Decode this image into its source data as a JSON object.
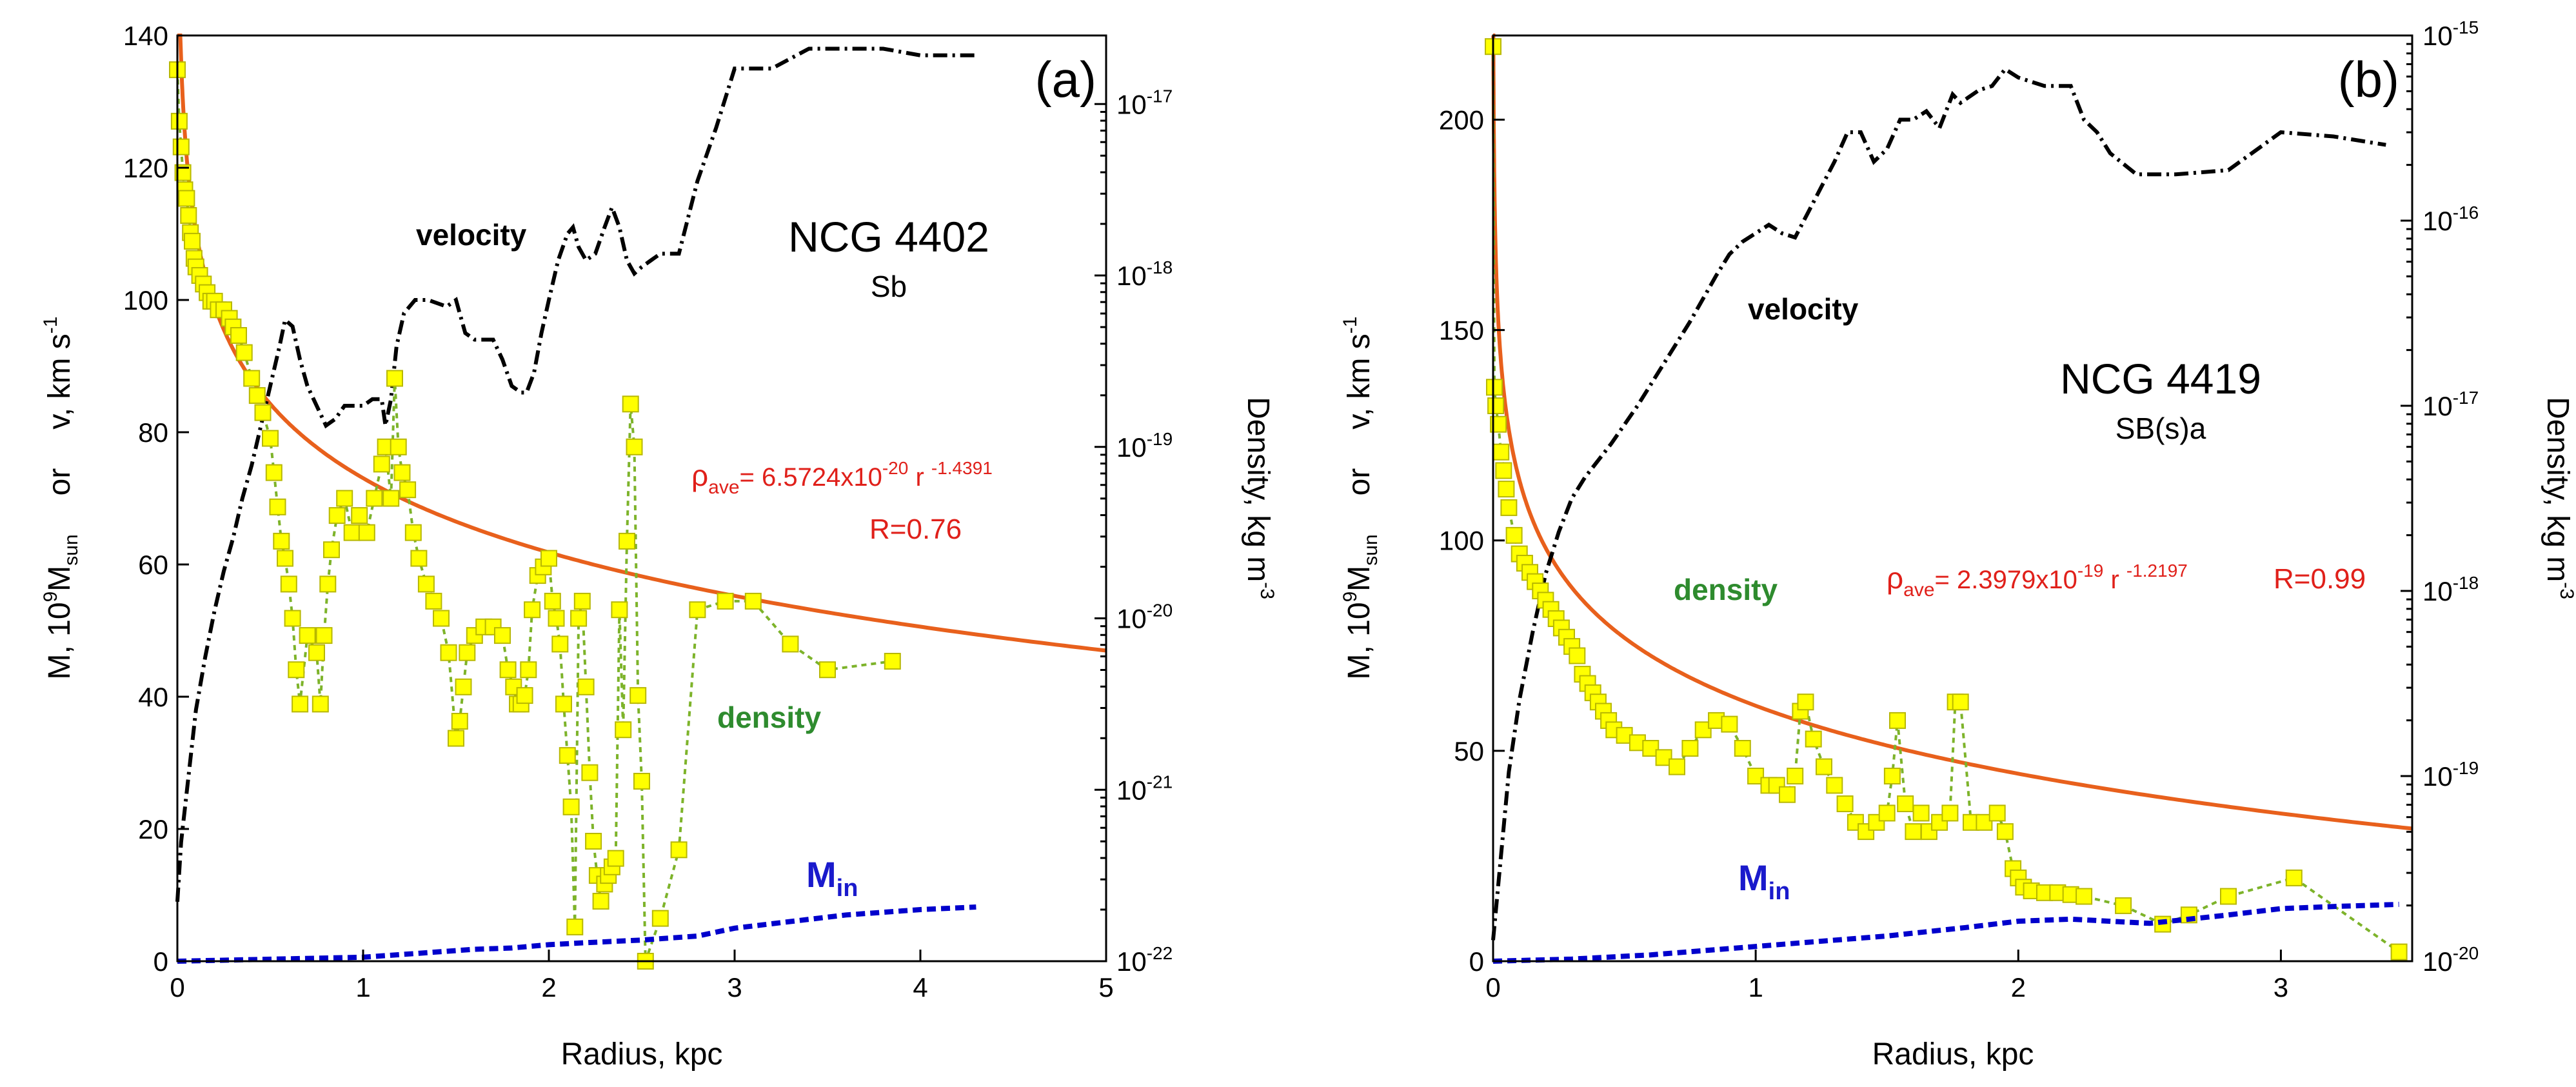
{
  "chart_data": [
    {
      "type": "line",
      "panel_label": "(a)",
      "galaxy": "NCG 4402",
      "morph": "Sb",
      "xlabel": "Radius, kpc",
      "ylabel": "M, 10^9M_sun or v, km s^-1",
      "ylabel_parts": {
        "m": "M, 10",
        "nine": "9",
        "msun": "M",
        "sun": "sun",
        "or": "or",
        "v": "v, km s",
        "neg1": "-1"
      },
      "y2label_parts": {
        "main": "Density, kg m",
        "exp": "-3"
      },
      "xlim": [
        0,
        5
      ],
      "ylim": [
        0,
        140
      ],
      "y2lim_log10": [
        -22,
        -16.6
      ],
      "x_ticks": [
        0,
        1,
        2,
        3,
        4,
        5
      ],
      "x_tick_labels": [
        "0",
        "1",
        "2",
        "3",
        "4",
        "5"
      ],
      "y_ticks": [
        0,
        20,
        40,
        60,
        80,
        100,
        120,
        140
      ],
      "y_tick_labels": [
        "0",
        "20",
        "40",
        "60",
        "80",
        "100",
        "120",
        "140"
      ],
      "y2_ticks": [
        -22,
        -21,
        -20,
        -19,
        -18,
        -17
      ],
      "y2_tick_labels": [
        {
          "base": "10",
          "exp": "-22"
        },
        {
          "base": "10",
          "exp": "-21"
        },
        {
          "base": "10",
          "exp": "-20"
        },
        {
          "base": "10",
          "exp": "-19"
        },
        {
          "base": "10",
          "exp": "-18"
        },
        {
          "base": "10",
          "exp": "-17"
        }
      ],
      "fit_label": {
        "rho": "ρ",
        "sub": "ave",
        "eq": "= 6.5724x10",
        "exp1": "-20",
        "r": " r ",
        "exp2": "-1.4391"
      },
      "fit_r": "R=0.76",
      "fit": {
        "coef": 6.5724e-20,
        "power": -1.4391
      },
      "series": [
        {
          "name": "velocity",
          "label": "velocity",
          "color": "#000000",
          "x": [
            0,
            0.02,
            0.06,
            0.1,
            0.15,
            0.2,
            0.25,
            0.3,
            0.35,
            0.4,
            0.45,
            0.5,
            0.55,
            0.58,
            0.62,
            0.66,
            0.7,
            0.75,
            0.8,
            0.85,
            0.9,
            0.95,
            1.0,
            1.05,
            1.1,
            1.12,
            1.15,
            1.18,
            1.22,
            1.28,
            1.35,
            1.45,
            1.5,
            1.55,
            1.6,
            1.65,
            1.7,
            1.75,
            1.8,
            1.85,
            1.88,
            1.92,
            1.96,
            2.0,
            2.05,
            2.1,
            2.13,
            2.16,
            2.2,
            2.25,
            2.3,
            2.34,
            2.38,
            2.42,
            2.46,
            2.5,
            2.55,
            2.6,
            2.7,
            2.8,
            2.9,
            3.0,
            3.05,
            3.2,
            3.4,
            3.6,
            3.8,
            4.0,
            4.1,
            4.3
          ],
          "y": [
            9,
            18,
            28,
            38,
            46,
            53,
            59,
            64,
            70,
            75,
            81,
            87,
            93,
            97,
            96,
            91,
            87,
            84,
            81,
            82,
            84,
            84,
            84,
            85,
            85,
            81,
            85,
            93,
            98,
            100,
            100,
            99,
            100,
            95,
            94,
            94,
            94,
            91,
            87,
            86,
            86,
            89,
            95,
            100,
            106,
            110,
            111,
            108,
            106,
            107,
            111,
            114,
            111,
            106,
            104,
            105,
            106,
            107,
            107,
            118,
            126,
            135,
            135,
            135,
            138,
            138,
            138,
            137,
            137,
            137
          ]
        },
        {
          "name": "density",
          "label": "density",
          "color": "#ffff00",
          "x": [
            0.0,
            0.01,
            0.02,
            0.03,
            0.04,
            0.05,
            0.06,
            0.07,
            0.08,
            0.09,
            0.1,
            0.12,
            0.14,
            0.16,
            0.18,
            0.2,
            0.22,
            0.25,
            0.28,
            0.3,
            0.33,
            0.36,
            0.4,
            0.43,
            0.46,
            0.5,
            0.52,
            0.54,
            0.56,
            0.58,
            0.6,
            0.62,
            0.64,
            0.66,
            0.7,
            0.75,
            0.77,
            0.79,
            0.81,
            0.83,
            0.86,
            0.9,
            0.94,
            0.98,
            1.02,
            1.06,
            1.1,
            1.12,
            1.15,
            1.17,
            1.19,
            1.21,
            1.24,
            1.27,
            1.3,
            1.34,
            1.38,
            1.42,
            1.46,
            1.5,
            1.52,
            1.54,
            1.56,
            1.6,
            1.65,
            1.7,
            1.75,
            1.78,
            1.81,
            1.83,
            1.85,
            1.87,
            1.89,
            1.91,
            1.94,
            1.97,
            2.0,
            2.02,
            2.04,
            2.06,
            2.08,
            2.1,
            2.12,
            2.14,
            2.16,
            2.18,
            2.2,
            2.22,
            2.24,
            2.26,
            2.28,
            2.3,
            2.32,
            2.34,
            2.36,
            2.38,
            2.4,
            2.42,
            2.44,
            2.46,
            2.48,
            2.5,
            2.52,
            2.6,
            2.7,
            2.8,
            2.95,
            3.1,
            3.3,
            3.5,
            3.85
          ],
          "y": [
            -16.8,
            -17.1,
            -17.25,
            -17.4,
            -17.5,
            -17.55,
            -17.65,
            -17.75,
            -17.8,
            -17.9,
            -17.95,
            -18.0,
            -18.05,
            -18.1,
            -18.15,
            -18.15,
            -18.2,
            -18.2,
            -18.25,
            -18.3,
            -18.35,
            -18.45,
            -18.6,
            -18.7,
            -18.8,
            -18.95,
            -19.15,
            -19.35,
            -19.55,
            -19.65,
            -19.8,
            -20.0,
            -20.3,
            -20.5,
            -20.1,
            -20.2,
            -20.5,
            -20.1,
            -19.8,
            -19.6,
            -19.4,
            -19.3,
            -19.5,
            -19.4,
            -19.5,
            -19.3,
            -19.1,
            -19.0,
            -19.3,
            -18.6,
            -19.0,
            -19.15,
            -19.25,
            -19.5,
            -19.65,
            -19.8,
            -19.9,
            -20.0,
            -20.2,
            -20.7,
            -20.6,
            -20.4,
            -20.2,
            -20.1,
            -20.05,
            -20.05,
            -20.1,
            -20.3,
            -20.4,
            -20.5,
            -20.5,
            -20.45,
            -20.3,
            -19.95,
            -19.75,
            -19.7,
            -19.65,
            -19.9,
            -20.0,
            -20.15,
            -20.5,
            -20.8,
            -21.1,
            -21.8,
            -20.0,
            -19.9,
            -20.4,
            -20.9,
            -21.3,
            -21.5,
            -21.65,
            -21.55,
            -21.5,
            -21.45,
            -21.4,
            -19.95,
            -20.65,
            -19.55,
            -18.75,
            -19.0,
            -20.45,
            -20.95,
            -22.05,
            -21.75,
            -21.35,
            -19.95,
            -19.9,
            -19.9,
            -20.15,
            -20.3,
            -20.25
          ]
        },
        {
          "name": "M_in",
          "label": "M",
          "label_sub": "in",
          "color": "#0000cc",
          "x": [
            0,
            0.5,
            1.0,
            1.3,
            1.6,
            1.8,
            2.0,
            2.2,
            2.5,
            2.8,
            3.0,
            3.3,
            3.6,
            4.0,
            4.3
          ],
          "y": [
            0,
            0.3,
            0.6,
            1.2,
            1.8,
            2.0,
            2.5,
            2.8,
            3.2,
            3.8,
            5.0,
            6.0,
            7.0,
            7.8,
            8.2
          ]
        }
      ]
    },
    {
      "type": "line",
      "panel_label": "(b)",
      "galaxy": "NCG 4419",
      "morph": "SB(s)a",
      "xlabel": "Radius, kpc",
      "ylabel": "M, 10^9M_sun or v, km s^-1",
      "ylabel_parts": {
        "m": "M, 10",
        "nine": "9",
        "msun": "M",
        "sun": "sun",
        "or": "or",
        "v": "v, km s",
        "neg1": "-1"
      },
      "y2label_parts": {
        "main": "Density, kg m",
        "exp": "-3"
      },
      "xlim": [
        0,
        3.5
      ],
      "ylim": [
        0,
        220
      ],
      "y2lim_log10": [
        -20,
        -15
      ],
      "x_ticks": [
        0,
        1,
        2,
        3
      ],
      "x_tick_labels": [
        "0",
        "1",
        "2",
        "3"
      ],
      "y_ticks": [
        0,
        50,
        100,
        150,
        200
      ],
      "y_tick_labels": [
        "0",
        "50",
        "100",
        "150",
        "200"
      ],
      "y2_ticks": [
        -20,
        -19,
        -18,
        -17,
        -16,
        -15
      ],
      "y2_tick_labels": [
        {
          "base": "10",
          "exp": "-20"
        },
        {
          "base": "10",
          "exp": "-19"
        },
        {
          "base": "10",
          "exp": "-18"
        },
        {
          "base": "10",
          "exp": "-17"
        },
        {
          "base": "10",
          "exp": "-16"
        },
        {
          "base": "10",
          "exp": "-15"
        }
      ],
      "fit_label": {
        "rho": "ρ",
        "sub": "ave",
        "eq": "= 2.3979x10",
        "exp1": "-19",
        "r": " r ",
        "exp2": "-1.2197"
      },
      "fit_r": "R=0.99",
      "fit": {
        "coef": 2.3979e-19,
        "power": -1.2197
      },
      "series": [
        {
          "name": "velocity",
          "label": "velocity",
          "color": "#000000",
          "x": [
            0,
            0.03,
            0.06,
            0.1,
            0.15,
            0.2,
            0.25,
            0.3,
            0.35,
            0.45,
            0.55,
            0.65,
            0.75,
            0.85,
            0.9,
            0.95,
            1.0,
            1.05,
            1.1,
            1.15,
            1.2,
            1.25,
            1.3,
            1.35,
            1.4,
            1.45,
            1.5,
            1.55,
            1.6,
            1.65,
            1.7,
            1.75,
            1.78,
            1.85,
            1.9,
            1.95,
            2.0,
            2.1,
            2.2,
            2.25,
            2.3,
            2.35,
            2.45,
            2.6,
            2.8,
            3.0,
            3.2,
            3.4
          ],
          "y": [
            5,
            25,
            45,
            62,
            78,
            92,
            102,
            110,
            115,
            123,
            132,
            142,
            152,
            163,
            168,
            171,
            173,
            175,
            173,
            172,
            178,
            184,
            190,
            197,
            197,
            190,
            193,
            200,
            200,
            202,
            198,
            206,
            204,
            207,
            208,
            212,
            210,
            208,
            208,
            200,
            197,
            192,
            187,
            187,
            188,
            197,
            196,
            194
          ]
        },
        {
          "name": "density",
          "label": "density",
          "color": "#ffff00",
          "x": [
            0.0,
            0.005,
            0.01,
            0.02,
            0.03,
            0.04,
            0.05,
            0.06,
            0.08,
            0.1,
            0.12,
            0.14,
            0.16,
            0.18,
            0.2,
            0.22,
            0.24,
            0.26,
            0.28,
            0.3,
            0.32,
            0.34,
            0.36,
            0.38,
            0.4,
            0.42,
            0.44,
            0.46,
            0.5,
            0.55,
            0.6,
            0.65,
            0.7,
            0.75,
            0.8,
            0.85,
            0.9,
            0.95,
            1.0,
            1.05,
            1.08,
            1.12,
            1.15,
            1.17,
            1.19,
            1.22,
            1.26,
            1.3,
            1.34,
            1.38,
            1.42,
            1.46,
            1.5,
            1.52,
            1.54,
            1.57,
            1.6,
            1.63,
            1.66,
            1.7,
            1.74,
            1.76,
            1.78,
            1.82,
            1.87,
            1.92,
            1.95,
            1.98,
            2.0,
            2.02,
            2.05,
            2.1,
            2.15,
            2.2,
            2.25,
            2.4,
            2.55,
            2.65,
            2.8,
            3.05,
            3.45
          ],
          "y": [
            -15.06,
            -16.9,
            -17.0,
            -17.1,
            -17.25,
            -17.35,
            -17.45,
            -17.55,
            -17.7,
            -17.8,
            -17.85,
            -17.9,
            -17.95,
            -18.0,
            -18.05,
            -18.1,
            -18.15,
            -18.2,
            -18.25,
            -18.3,
            -18.35,
            -18.45,
            -18.5,
            -18.55,
            -18.6,
            -18.65,
            -18.7,
            -18.75,
            -18.78,
            -18.82,
            -18.85,
            -18.9,
            -18.95,
            -18.85,
            -18.75,
            -18.7,
            -18.72,
            -18.85,
            -19.0,
            -19.05,
            -19.05,
            -19.1,
            -19.0,
            -18.65,
            -18.6,
            -18.8,
            -18.95,
            -19.05,
            -19.15,
            -19.25,
            -19.3,
            -19.25,
            -19.2,
            -19.0,
            -18.7,
            -19.15,
            -19.3,
            -19.2,
            -19.3,
            -19.25,
            -19.2,
            -18.6,
            -18.6,
            -19.25,
            -19.25,
            -19.2,
            -19.3,
            -19.5,
            -19.55,
            -19.6,
            -19.62,
            -19.63,
            -19.63,
            -19.64,
            -19.65,
            -19.7,
            -19.8,
            -19.75,
            -19.65,
            -19.55,
            -19.95
          ]
        },
        {
          "name": "M_in",
          "label": "M",
          "label_sub": "in",
          "color": "#0000cc",
          "x": [
            0,
            0.3,
            0.6,
            0.9,
            1.2,
            1.5,
            1.8,
            2.0,
            2.2,
            2.5,
            2.8,
            3.0,
            3.2,
            3.45
          ],
          "y": [
            0,
            0.5,
            1.5,
            3.0,
            4.5,
            6.0,
            8.0,
            9.5,
            10.0,
            9.0,
            11.0,
            12.5,
            13.0,
            13.5
          ]
        }
      ]
    }
  ]
}
